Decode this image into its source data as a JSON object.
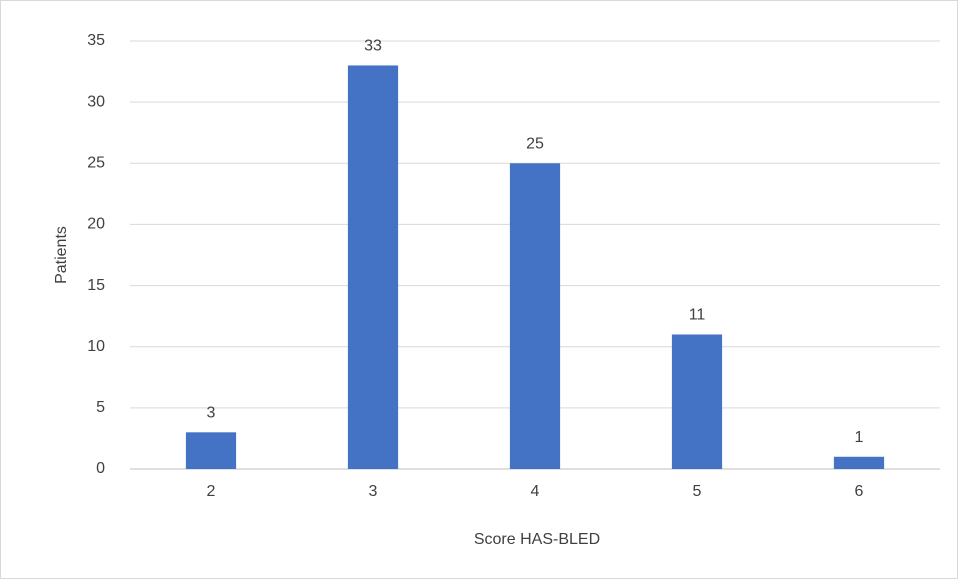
{
  "chart_data": {
    "type": "bar",
    "x_label": "Score HAS-BLED",
    "y_label": "Patients",
    "categories": [
      "2",
      "3",
      "4",
      "5",
      "6"
    ],
    "values": [
      3,
      33,
      25,
      11,
      1
    ],
    "color": "#4472c4",
    "ylim": [
      0,
      35
    ],
    "yticks": [
      0,
      5,
      10,
      15,
      20,
      25,
      30,
      35
    ],
    "grid": true,
    "data_labels": true
  }
}
